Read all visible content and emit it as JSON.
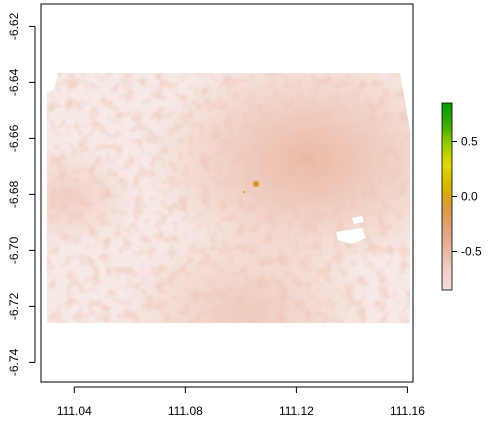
{
  "chart_data": {
    "type": "heatmap",
    "title": "",
    "xlabel": "",
    "ylabel": "",
    "xlim": [
      111.028,
      111.162
    ],
    "ylim": [
      -6.747,
      -6.612
    ],
    "x_ticks": [
      "111.04",
      "111.08",
      "111.12",
      "111.16"
    ],
    "x_tick_values": [
      111.04,
      111.08,
      111.12,
      111.16
    ],
    "y_ticks": [
      "-6.62",
      "-6.64",
      "-6.66",
      "-6.68",
      "-6.70",
      "-6.72",
      "-6.74"
    ],
    "y_tick_values": [
      -6.62,
      -6.64,
      -6.66,
      -6.68,
      -6.7,
      -6.72,
      -6.74
    ],
    "raster_extent": {
      "x": [
        111.028,
        111.161
      ],
      "y": [
        -6.727,
        -6.635
      ]
    },
    "legend": {
      "placement": "right",
      "range": [
        -0.85,
        0.85
      ],
      "ticks": [
        "0.5",
        "0.0",
        "-0.5"
      ],
      "tick_values": [
        0.5,
        0.0,
        -0.5
      ],
      "colors": [
        "#f2dcdc",
        "#f0cfc9",
        "#e9b39e",
        "#e2a077",
        "#d99a3c",
        "#d8b400",
        "#e2d800",
        "#9acc00",
        "#3aa800",
        "#00a000"
      ]
    },
    "grid": false
  }
}
